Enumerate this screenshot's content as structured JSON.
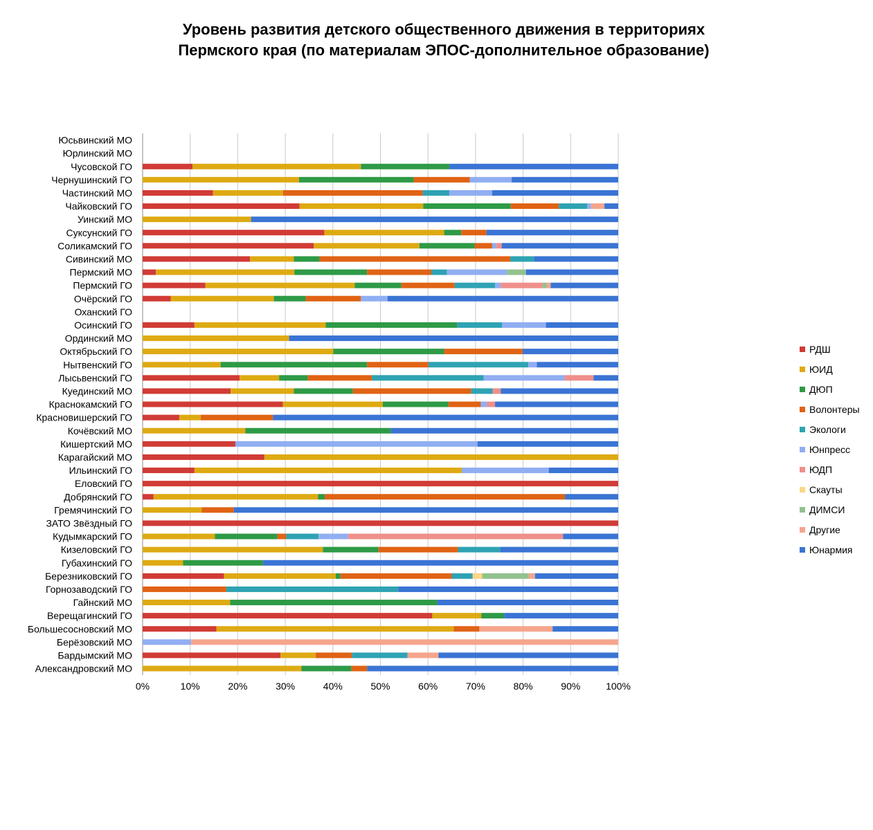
{
  "chart_data": {
    "type": "bar",
    "orientation": "horizontal",
    "stacking": "percent",
    "title": "Уровень развития детского общественного движения в территориях Пермского края (по материалам ЭПОС-дополнительное образование)",
    "title_lines": [
      "Уровень развития детского общественного движения в территориях",
      "Пермского края (по материалам ЭПОС-дополнительное образование)"
    ],
    "xlabel": "",
    "ylabel": "",
    "xlim": [
      0,
      100
    ],
    "x_ticks": [
      "0%",
      "10%",
      "20%",
      "30%",
      "40%",
      "50%",
      "60%",
      "70%",
      "80%",
      "90%",
      "100%"
    ],
    "grid": true,
    "legend_position": "right",
    "categories": [
      "Юсьвинский МО",
      "Юрлинский МО",
      "Чусовской ГО",
      "Чернушинский ГО",
      "Частинский МО",
      "Чайковский ГО",
      "Уинский МО",
      "Суксунский ГО",
      "Соликамский ГО",
      "Сивинский МО",
      "Пермский МО",
      "Пермский ГО",
      "Очёрский ГО",
      "Оханский ГО",
      "Осинский ГО",
      "Ординский МО",
      "Октябрьский ГО",
      "Нытвенский ГО",
      "Лысьвенский ГО",
      "Куединский МО",
      "Краснокамский ГО",
      "Красновишерский ГО",
      "Кочёвский МО",
      "Кишертский МО",
      "Карагайский МО",
      "Ильинский ГО",
      "Еловский ГО",
      "Добрянский ГО",
      "Гремячинский ГО",
      "ЗАТО Звёздный ГО",
      "Кудымкарский ГО",
      "Кизеловский ГО",
      "Губахинский ГО",
      "Березниковский ГО",
      "Горнозаводский ГО",
      "Гайнский МО",
      "Верещагинский ГО",
      "Большесосновский МО",
      "Берёзовский МО",
      "Бардымский МО",
      "Александровский МО"
    ],
    "series": [
      {
        "name": "РДШ",
        "color": "#d13b35",
        "values": [
          0,
          0,
          10.5,
          0,
          14.8,
          33,
          0,
          38.2,
          36,
          22.6,
          2.8,
          13.2,
          5.9,
          0,
          10.9,
          0,
          0,
          0,
          20.4,
          18.5,
          29.5,
          7.7,
          0,
          19.5,
          25.6,
          10.9,
          100,
          2.3,
          0,
          100,
          0,
          0,
          0,
          17.1,
          0,
          0,
          60.9,
          15.5,
          0,
          29,
          0
        ]
      },
      {
        "name": "ЮИД",
        "color": "#deaa13",
        "values": [
          0,
          0,
          35.4,
          32.9,
          14.7,
          26,
          22.8,
          25.2,
          22.2,
          9.2,
          29.1,
          31.4,
          21.7,
          0,
          27.6,
          30.8,
          40.1,
          16.4,
          8.3,
          13.3,
          21,
          4.5,
          21.6,
          0,
          74.4,
          56.2,
          0,
          34.6,
          12.4,
          0,
          15.2,
          37.9,
          8.5,
          23.5,
          0,
          18.4,
          10.3,
          49.9,
          0,
          7.4,
          33.4
        ]
      },
      {
        "name": "ДЮП",
        "color": "#2e9a46",
        "values": [
          0,
          0,
          18.6,
          24.1,
          0,
          18.4,
          0,
          3.6,
          11.6,
          5.4,
          15.3,
          9.8,
          6.7,
          0,
          27.6,
          0,
          23.3,
          30.8,
          6,
          12.4,
          13.8,
          0,
          30.6,
          0,
          0,
          0,
          0,
          1.4,
          0,
          0,
          13.1,
          11.7,
          16.8,
          1,
          0,
          43.6,
          4.8,
          0,
          0,
          0,
          10.5
        ]
      },
      {
        "name": "Волонтеры",
        "color": "#e06314",
        "values": [
          0,
          0,
          0,
          11.8,
          29.4,
          10.1,
          0,
          5.3,
          3.7,
          40.1,
          13.5,
          11.2,
          11.6,
          0,
          0,
          0,
          16.5,
          12.9,
          13.5,
          24.9,
          6.8,
          15.2,
          0,
          0,
          0,
          0,
          0,
          50.5,
          6.8,
          0,
          1.9,
          16.7,
          0,
          23.4,
          17.6,
          0,
          0,
          5.4,
          0,
          7.6,
          3.3
        ]
      },
      {
        "name": "Экологи",
        "color": "#2ea3b3",
        "values": [
          0,
          0,
          0,
          0,
          5.6,
          6,
          0,
          0,
          0,
          5,
          3.3,
          8.5,
          0,
          0,
          9.5,
          0,
          0,
          21,
          23.5,
          4.5,
          0,
          0,
          0,
          0,
          0,
          0,
          0,
          0,
          0,
          0,
          6.8,
          8.9,
          0,
          4.4,
          36.2,
          0,
          0,
          0,
          0,
          11.7,
          0
        ]
      },
      {
        "name": "Юнпресс",
        "color": "#90aef2",
        "values": [
          0,
          0,
          0,
          8.8,
          9,
          0.8,
          0,
          0,
          0.9,
          0,
          12.6,
          1.2,
          5.6,
          0,
          9.2,
          0,
          0,
          1.8,
          17,
          0,
          1.3,
          0,
          0,
          50.9,
          0,
          18.3,
          0,
          0,
          0,
          0,
          6.2,
          0,
          0,
          0,
          0,
          0,
          0,
          0,
          10.2,
          0,
          0
        ]
      },
      {
        "name": "ЮДП",
        "color": "#ef8f8b",
        "values": [
          0,
          0,
          0,
          0,
          0,
          0,
          0,
          0,
          1.1,
          0,
          0,
          8.8,
          0,
          0,
          0,
          0,
          0,
          0,
          6.1,
          1.7,
          1.7,
          0,
          0,
          0,
          0,
          0,
          0,
          0,
          0,
          0,
          45.2,
          0,
          0,
          0,
          0,
          0,
          0,
          0,
          0,
          0,
          0
        ]
      },
      {
        "name": "Скауты",
        "color": "#fcd685",
        "values": [
          0,
          0,
          0,
          0,
          0,
          0,
          0,
          0,
          0,
          0,
          0,
          0,
          0,
          0,
          0,
          0,
          0,
          0,
          0,
          0,
          0,
          0,
          0,
          0,
          0,
          0,
          0,
          0,
          0,
          0,
          0,
          0,
          0,
          2,
          0,
          0,
          0,
          0,
          0,
          0,
          0
        ]
      },
      {
        "name": "ДИМСИ",
        "color": "#92c28e",
        "values": [
          0,
          0,
          0,
          0,
          0,
          0,
          0,
          0,
          0,
          0,
          4,
          0.9,
          0,
          0,
          0,
          0,
          0,
          0,
          0,
          0,
          0,
          0,
          0,
          0,
          0,
          0,
          0,
          0,
          0,
          0,
          0,
          0,
          0,
          9.8,
          0,
          0,
          0,
          0,
          0,
          0,
          0
        ]
      },
      {
        "name": "Другие",
        "color": "#f6a58c",
        "values": [
          0,
          0,
          0,
          0,
          0,
          2.8,
          0,
          0,
          0,
          0,
          0,
          0.8,
          0,
          0,
          0,
          0,
          0,
          0,
          0,
          0,
          0,
          0,
          0,
          0,
          0,
          0,
          0,
          0,
          0,
          0,
          0,
          0,
          0,
          1.3,
          0,
          0,
          0,
          15.4,
          89.8,
          6.5,
          0
        ]
      },
      {
        "name": "Юнармия",
        "color": "#3a74d4",
        "values": [
          0,
          0,
          35.5,
          22.4,
          26.5,
          2.9,
          77.2,
          27.7,
          24.5,
          17.7,
          19.4,
          14.2,
          48.5,
          0,
          15.2,
          69.2,
          20.1,
          17.1,
          5.2,
          24.7,
          25.9,
          72.6,
          47.8,
          29.6,
          0,
          14.6,
          0,
          11.2,
          80.8,
          0,
          11.6,
          24.8,
          74.7,
          17.5,
          46.2,
          38,
          24,
          13.8,
          0,
          37.8,
          52.8
        ]
      }
    ]
  }
}
